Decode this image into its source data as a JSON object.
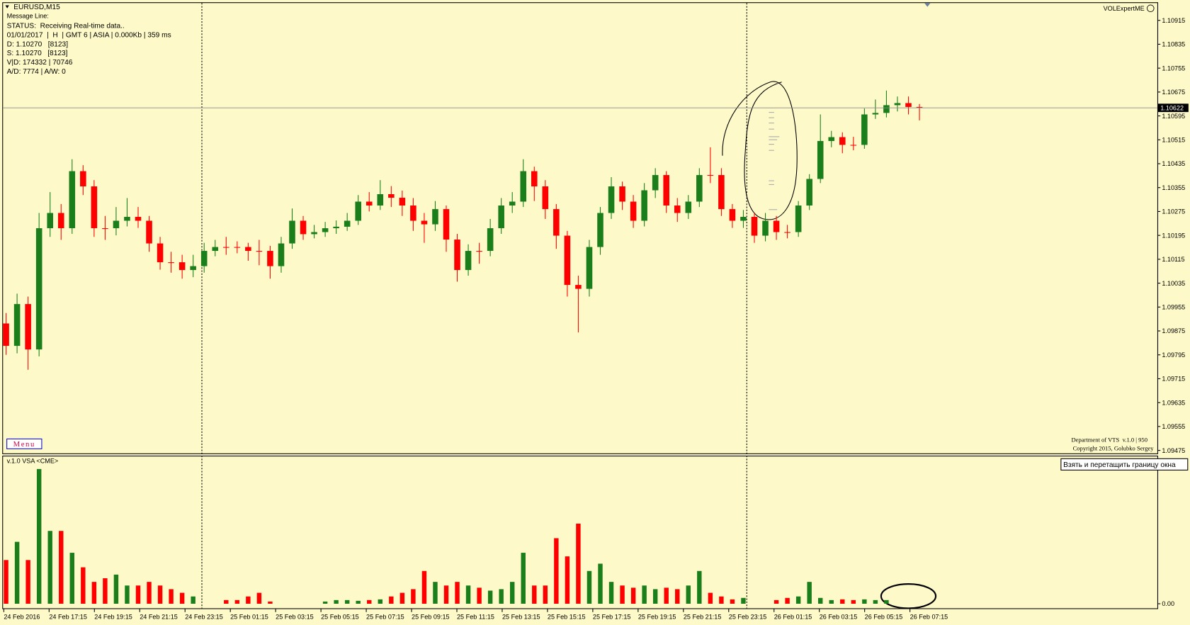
{
  "overlay": {
    "symbol": "EURUSD,M15",
    "message": "Message Line:",
    "status": "STATUS:  Receiving Real-time data..",
    "info": "01/01/2017  |  H  | GMT 6 | ASIA | 0.000Kb | 359 ms",
    "d_line": "D: 1.10270   [8123]",
    "s_line": "S: 1.10270   [8123]",
    "vd_line": "V|D: 174332 | 70746",
    "ad_line": "A/D: 7774 | A/W: 0",
    "expert": "VOLExpertME",
    "menu": "Menu",
    "credit1": "Department of VTS  v.1.0 | 950",
    "credit2": "Copyright 2015, Golubko Sergey",
    "indicator": "v.1.0 VSA <CME>",
    "tooltip": "Взять и перетащить границу окна"
  },
  "chart_data": {
    "type": "candlestick",
    "up_color": "#1a7f1a",
    "down_color": "#ff0000",
    "last_price": 1.10622,
    "ylim": [
      1.09465,
      1.10973
    ],
    "yticks": [
      1.10915,
      1.10835,
      1.10755,
      1.10675,
      1.10595,
      1.10515,
      1.10435,
      1.10355,
      1.10275,
      1.10195,
      1.10115,
      1.10035,
      1.09955,
      1.09875,
      1.09795,
      1.09715,
      1.09635,
      1.09555,
      1.09475
    ],
    "x_labels": [
      "24 Feb 2016",
      "24 Feb 17:15",
      "24 Feb 19:15",
      "24 Feb 21:15",
      "24 Feb 23:15",
      "25 Feb 01:15",
      "25 Feb 03:15",
      "25 Feb 05:15",
      "25 Feb 07:15",
      "25 Feb 09:15",
      "25 Feb 11:15",
      "25 Feb 13:15",
      "25 Feb 15:15",
      "25 Feb 17:15",
      "25 Feb 19:15",
      "25 Feb 21:15",
      "25 Feb 23:15",
      "26 Feb 01:15",
      "26 Feb 03:15",
      "26 Feb 05:15",
      "26 Feb 07:15"
    ],
    "open": [
      1.099,
      1.09825,
      1.09965,
      1.09813,
      1.10219,
      1.1027,
      1.10219,
      1.1041,
      1.10359,
      1.10219,
      1.10219,
      1.10244,
      1.10257,
      1.10244,
      1.10168,
      1.10105,
      1.10105,
      1.10079,
      1.10092,
      1.10143,
      1.10156,
      1.10156,
      1.10156,
      1.10143,
      1.10143,
      1.10092,
      1.10168,
      1.10244,
      1.10199,
      1.10206,
      1.10219,
      1.10224,
      1.10244,
      1.10308,
      1.10295,
      1.10333,
      1.10321,
      1.10295,
      1.10244,
      1.10232,
      1.10283,
      1.10181,
      1.10079,
      1.10143,
      1.10143,
      1.10219,
      1.10295,
      1.10308,
      1.1041,
      1.10359,
      1.10283,
      1.10194,
      1.10029,
      1.10016,
      1.10156,
      1.1027,
      1.10359,
      1.10308,
      1.10244,
      1.10346,
      1.10397,
      1.10295,
      1.1027,
      1.10308,
      1.10397,
      1.10397,
      1.10283,
      1.10244,
      1.10257,
      1.10194,
      1.10244,
      1.10206,
      1.10206,
      1.10295,
      1.10384,
      1.10511,
      1.10524,
      1.10498,
      1.10498,
      1.106,
      1.10605,
      1.10631,
      1.10638,
      1.10625
    ],
    "high": [
      1.09935,
      1.1,
      1.0999,
      1.1027,
      1.1034,
      1.103,
      1.1045,
      1.1043,
      1.1038,
      1.1026,
      1.1029,
      1.1032,
      1.1029,
      1.1026,
      1.1019,
      1.1014,
      1.1013,
      1.1013,
      1.1017,
      1.1018,
      1.1019,
      1.10175,
      1.1017,
      1.1018,
      1.1016,
      1.1019,
      1.10285,
      1.1026,
      1.1023,
      1.1024,
      1.10245,
      1.1027,
      1.1033,
      1.1034,
      1.1038,
      1.1036,
      1.10345,
      1.1032,
      1.1027,
      1.1031,
      1.10295,
      1.102,
      1.10165,
      1.1017,
      1.1025,
      1.1032,
      1.1034,
      1.1045,
      1.10425,
      1.1038,
      1.103,
      1.1021,
      1.1006,
      1.1018,
      1.1029,
      1.1039,
      1.10375,
      1.1033,
      1.1037,
      1.1042,
      1.1041,
      1.1032,
      1.1033,
      1.1042,
      1.1049,
      1.1042,
      1.103,
      1.1028,
      1.1027,
      1.1027,
      1.1026,
      1.1023,
      1.1031,
      1.104,
      1.106,
      1.10545,
      1.1054,
      1.10525,
      1.1062,
      1.1065,
      1.1068,
      1.1066,
      1.1066,
      1.10635
    ],
    "low": [
      1.09795,
      1.098,
      1.09745,
      1.0979,
      1.1019,
      1.1018,
      1.102,
      1.1033,
      1.1019,
      1.1018,
      1.10195,
      1.10225,
      1.1022,
      1.1014,
      1.1008,
      1.1007,
      1.1005,
      1.10055,
      1.1007,
      1.10125,
      1.1013,
      1.10135,
      1.1011,
      1.10095,
      1.1005,
      1.1007,
      1.1015,
      1.1018,
      1.10185,
      1.1019,
      1.102,
      1.1021,
      1.1023,
      1.10275,
      1.1028,
      1.1029,
      1.1026,
      1.1021,
      1.1017,
      1.1021,
      1.1014,
      1.1004,
      1.1006,
      1.101,
      1.10125,
      1.102,
      1.1027,
      1.1029,
      1.1031,
      1.1025,
      1.1015,
      1.0999,
      1.0987,
      1.0999,
      1.1013,
      1.1025,
      1.1028,
      1.1022,
      1.10225,
      1.1032,
      1.1027,
      1.1024,
      1.1025,
      1.1029,
      1.1037,
      1.1026,
      1.1022,
      1.1022,
      1.1017,
      1.10175,
      1.1018,
      1.10185,
      1.1019,
      1.1028,
      1.1037,
      1.1049,
      1.1047,
      1.1048,
      1.10485,
      1.10585,
      1.1059,
      1.1061,
      1.106,
      1.1058
    ],
    "close": [
      1.09825,
      1.09965,
      1.09813,
      1.10219,
      1.1027,
      1.10219,
      1.1041,
      1.10359,
      1.10219,
      1.10219,
      1.10244,
      1.10257,
      1.10244,
      1.10168,
      1.10105,
      1.10105,
      1.10079,
      1.10092,
      1.10143,
      1.10156,
      1.10156,
      1.10156,
      1.10143,
      1.10143,
      1.10092,
      1.10168,
      1.10244,
      1.10199,
      1.10206,
      1.10219,
      1.10224,
      1.10244,
      1.10308,
      1.10295,
      1.10333,
      1.10321,
      1.10295,
      1.10244,
      1.10232,
      1.10283,
      1.10181,
      1.10079,
      1.10143,
      1.10143,
      1.10219,
      1.10295,
      1.10308,
      1.1041,
      1.10359,
      1.10283,
      1.10194,
      1.10029,
      1.10016,
      1.10156,
      1.1027,
      1.10359,
      1.10308,
      1.10244,
      1.10346,
      1.10397,
      1.10295,
      1.1027,
      1.10308,
      1.10397,
      1.10397,
      1.10283,
      1.10244,
      1.10257,
      1.10194,
      1.10244,
      1.10206,
      1.10206,
      1.10295,
      1.10384,
      1.10511,
      1.10524,
      1.10498,
      1.10498,
      1.106,
      1.10605,
      1.10631,
      1.10638,
      1.10625,
      1.10622
    ],
    "volume": [
      60,
      85,
      60,
      185,
      100,
      100,
      70,
      50,
      30,
      35,
      40,
      25,
      25,
      30,
      25,
      20,
      15,
      10,
      0,
      0,
      5,
      5,
      10,
      15,
      3,
      0,
      0,
      0,
      0,
      3,
      5,
      5,
      4,
      5,
      6,
      10,
      15,
      20,
      45,
      30,
      25,
      30,
      25,
      22,
      18,
      20,
      30,
      70,
      25,
      25,
      90,
      65,
      110,
      45,
      55,
      30,
      25,
      22,
      25,
      20,
      22,
      20,
      25,
      45,
      15,
      10,
      6,
      8,
      0,
      0,
      5,
      8,
      10,
      30,
      8,
      5,
      6,
      5,
      6,
      5,
      5,
      0,
      0,
      0
    ],
    "vlim": [
      0,
      195
    ],
    "vticks": [
      {
        "value": 0,
        "label": "0.00"
      }
    ]
  }
}
